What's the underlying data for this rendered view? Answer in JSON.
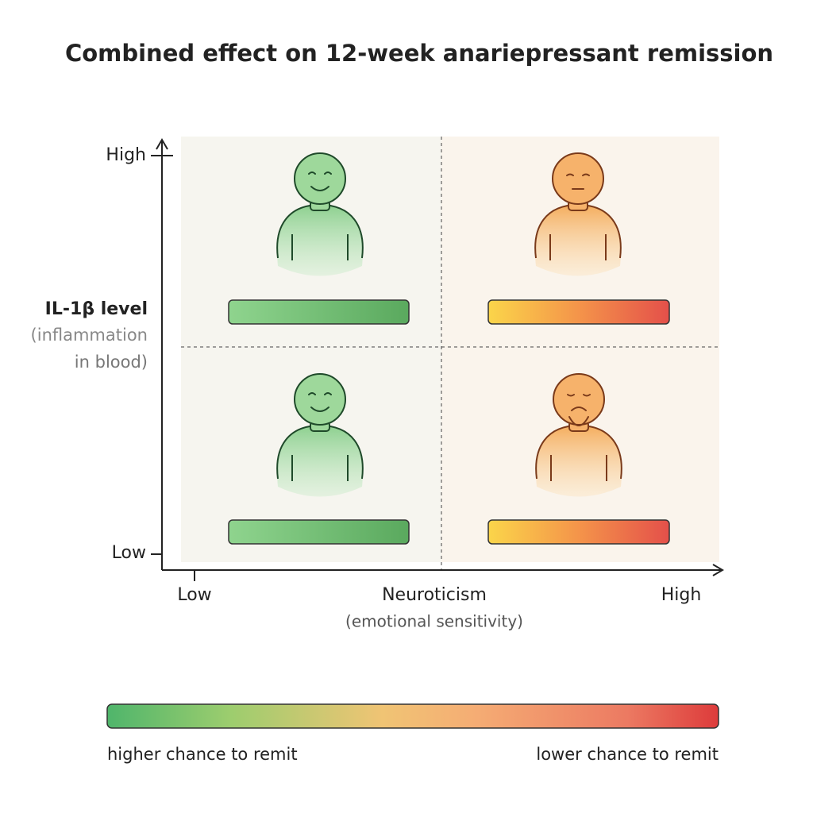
{
  "title": "Combined effect on 12-week anariepressant remission",
  "y_axis": {
    "high": "High",
    "low": "Low",
    "label": "IL-1β level",
    "sublabel_line1": "(inflammation",
    "sublabel_line2": "in blood)"
  },
  "x_axis": {
    "low": "Low",
    "label": "Neuroticism",
    "sublabel": "(emotional sensitivity)",
    "high": "High"
  },
  "legend": {
    "left": "higher chance to remit",
    "right": "lower chance to remit"
  }
}
